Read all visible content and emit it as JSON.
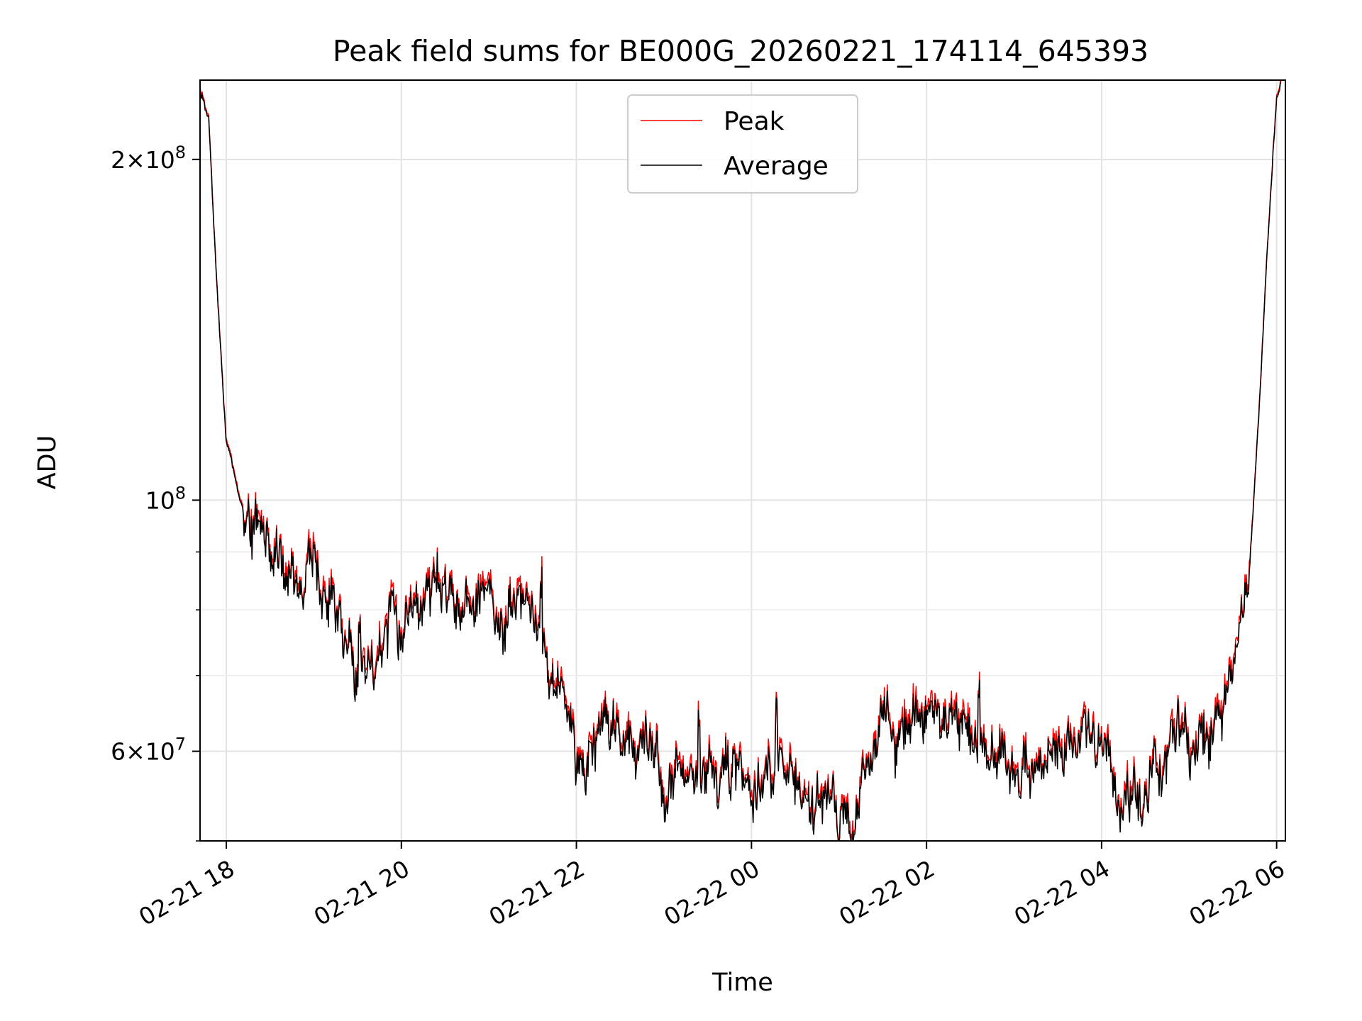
{
  "chart_data": {
    "type": "line",
    "title": "Peak field sums for BE000G_20260221_174114_645393",
    "xlabel": "Time",
    "ylabel": "ADU",
    "yscale": "log",
    "xlim_hours": [
      -0.3,
      12.1
    ],
    "ylim": [
      50000000,
      235000000
    ],
    "grid": true,
    "legend_position": "upper center",
    "x_ticks": [
      {
        "hour": 0,
        "label": "02-21 18"
      },
      {
        "hour": 2,
        "label": "02-21 20"
      },
      {
        "hour": 4,
        "label": "02-21 22"
      },
      {
        "hour": 6,
        "label": "02-22 00"
      },
      {
        "hour": 8,
        "label": "02-22 02"
      },
      {
        "hour": 10,
        "label": "02-22 04"
      },
      {
        "hour": 12,
        "label": "02-22 06"
      }
    ],
    "y_major_ticks": [
      {
        "value": 60000000,
        "mantissa": "6",
        "exp": "7"
      },
      {
        "value": 100000000,
        "mantissa": "",
        "exp": "8"
      },
      {
        "value": 200000000,
        "mantissa": "2",
        "exp": "8"
      }
    ],
    "y_minor_ticks": [
      50000000,
      70000000,
      80000000,
      90000000
    ],
    "series_anchor_x_hours": [
      -0.3,
      -0.2,
      -0.1,
      0.0,
      0.1,
      0.2,
      0.3,
      0.5,
      0.7,
      0.9,
      1.0,
      1.2,
      1.4,
      1.6,
      1.8,
      2.0,
      2.3,
      2.5,
      2.7,
      3.0,
      3.3,
      3.5,
      3.7,
      3.9,
      4.0,
      4.3,
      4.6,
      5.0,
      5.5,
      6.0,
      6.5,
      7.0,
      7.2,
      7.5,
      7.8,
      8.0,
      8.5,
      9.0,
      9.5,
      10.0,
      10.2,
      10.5,
      10.8,
      11.0,
      11.3,
      11.5,
      11.6,
      11.7,
      11.8,
      11.9,
      12.0,
      12.05
    ],
    "series_anchor_y_adu": [
      230000000,
      215000000,
      150000000,
      112000000,
      105000000,
      97000000,
      95000000,
      88000000,
      85000000,
      82000000,
      84000000,
      80000000,
      74000000,
      72000000,
      76000000,
      80000000,
      86000000,
      84000000,
      81000000,
      80000000,
      79000000,
      78000000,
      70000000,
      68000000,
      58000000,
      63000000,
      63000000,
      57000000,
      57000000,
      58000000,
      57000000,
      52000000,
      55000000,
      62000000,
      63000000,
      63000000,
      61000000,
      59000000,
      59000000,
      59000000,
      54000000,
      54000000,
      59000000,
      58000000,
      62000000,
      70000000,
      76000000,
      90000000,
      120000000,
      170000000,
      225000000,
      232000000
    ],
    "series": [
      {
        "name": "Peak",
        "color": "#ff0000",
        "noise_seed": 7
      },
      {
        "name": "Average",
        "color": "#000000",
        "noise_seed": 7
      }
    ]
  }
}
